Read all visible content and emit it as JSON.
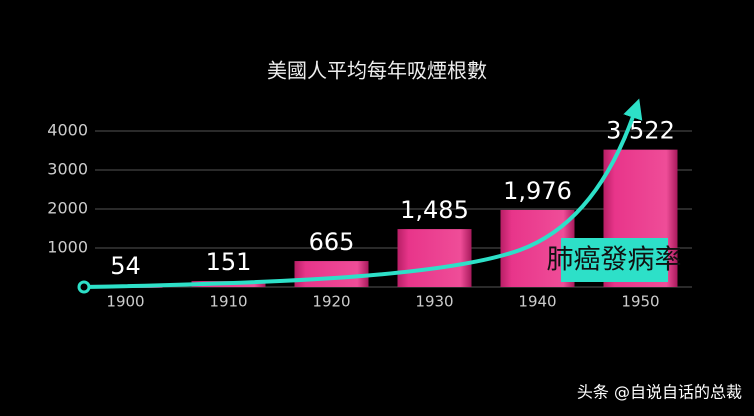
{
  "chart_data": {
    "type": "bar",
    "title": "美國人平均每年吸煙根數",
    "categories": [
      "1900",
      "1910",
      "1920",
      "1930",
      "1940",
      "1950"
    ],
    "values": [
      54,
      151,
      665,
      1485,
      1976,
      3522
    ],
    "value_labels": [
      "54",
      "151",
      "665",
      "1,485",
      "1,976",
      "3,522"
    ],
    "color": "#e8358a",
    "ylim": [
      0,
      4000
    ],
    "yticks": [
      1000,
      2000,
      3000,
      4000
    ],
    "grid": true,
    "annotation": "肺癌發病率"
  },
  "watermark": "头条 @自说自话的总裁"
}
